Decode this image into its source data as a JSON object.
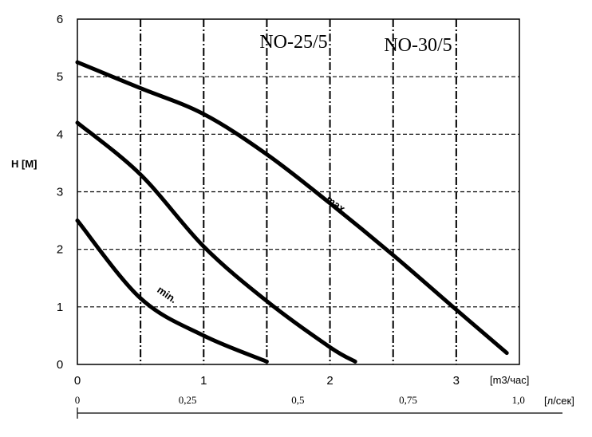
{
  "chart_data": {
    "type": "line",
    "title_left": "NO-25/5",
    "title_right": "NO-30/5",
    "ylabel": "H [M]",
    "xlabel": "[m3/час]",
    "xlabel2": "[л/сек]",
    "ylim": [
      0,
      6
    ],
    "xlim": [
      0,
      3.5
    ],
    "x2lim": [
      0,
      1.1
    ],
    "grid": true,
    "y_ticks": [
      "0",
      "1",
      "2",
      "3",
      "4",
      "5",
      "6"
    ],
    "x_ticks": [
      "0",
      "1",
      "2",
      "3"
    ],
    "x2_ticks": [
      {
        "value": 0,
        "label": "0"
      },
      {
        "value": 0.25,
        "label": "0,25"
      },
      {
        "value": 0.5,
        "label": "0,5"
      },
      {
        "value": 0.75,
        "label": "0,75"
      },
      {
        "value": 1.0,
        "label": "1,0"
      }
    ],
    "series": [
      {
        "name": "max.",
        "x": [
          0,
          0.5,
          1.0,
          1.5,
          2.0,
          2.5,
          3.0,
          3.4
        ],
        "y": [
          5.25,
          4.8,
          4.35,
          3.65,
          2.8,
          1.9,
          0.95,
          0.2
        ]
      },
      {
        "name": "",
        "x": [
          0,
          0.5,
          1.0,
          1.5,
          2.0,
          2.2
        ],
        "y": [
          4.2,
          3.3,
          2.05,
          1.1,
          0.3,
          0.05
        ]
      },
      {
        "name": "min.",
        "x": [
          0,
          0.5,
          1.0,
          1.5
        ],
        "y": [
          2.5,
          1.15,
          0.5,
          0.05
        ]
      }
    ]
  }
}
